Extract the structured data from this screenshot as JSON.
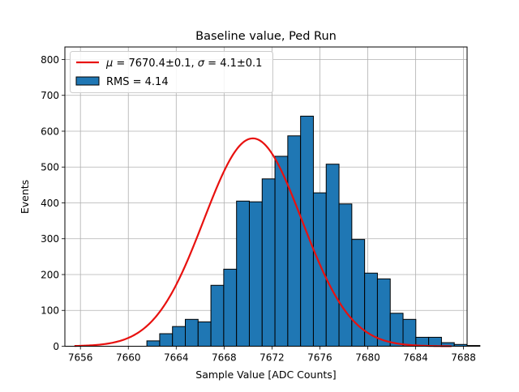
{
  "chart_data": {
    "type": "bar",
    "title": "Baseline value, Ped Run",
    "xlabel": "Sample Value [ADC Counts]",
    "ylabel": "Events",
    "xlim": [
      7654.7,
      7688.3
    ],
    "ylim": [
      0,
      835
    ],
    "grid": true,
    "legend_placement": "upper-left",
    "x_ticks": [
      7656,
      7660,
      7664,
      7668,
      7672,
      7676,
      7680,
      7684,
      7688
    ],
    "y_ticks": [
      0,
      100,
      200,
      300,
      400,
      500,
      600,
      700,
      800
    ],
    "histogram": {
      "name": "RMS = 4.14",
      "bin_width": 1.07,
      "bin_edges_start": 7656.2,
      "counts": [
        2,
        0,
        0,
        0,
        0,
        15,
        35,
        55,
        75,
        68,
        170,
        215,
        405,
        403,
        467,
        530,
        587,
        642,
        428,
        508,
        397,
        298,
        204,
        188,
        92,
        75,
        25,
        25,
        10,
        5,
        2,
        0,
        0
      ],
      "fill_color": "#1f77b4",
      "edge_color": "#000000"
    },
    "fit": {
      "name": "μ = 7670.4±0.1, σ = 4.1±0.1",
      "label_mu_value": "7670.4±0.1",
      "label_sigma_value": "4.1±0.1",
      "mu": 7670.4,
      "sigma": 4.1,
      "amplitude": 580,
      "x_range": [
        7655.5,
        7687.0
      ],
      "color": "#e8110f"
    }
  }
}
